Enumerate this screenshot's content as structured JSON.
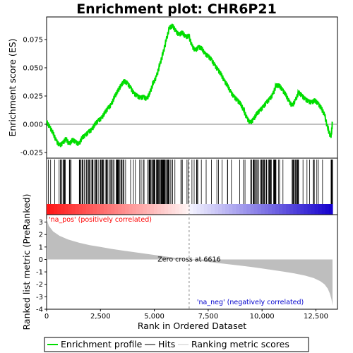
{
  "title": "Enrichment plot: CHR6P21",
  "colors": {
    "enrichment_line": "#00dd00",
    "hits": "#000000",
    "metric_fill": "#bebebe",
    "pos_color": "#ff0000",
    "neg_color": "#0000cc",
    "zero_line": "#808080",
    "legend_metric_line": "#c8c8c8"
  },
  "chart_data": {
    "type": "line",
    "title": "Enrichment plot: CHR6P21",
    "xlabel": "Rank in Ordered Dataset",
    "top_ylabel": "Enrichment score (ES)",
    "bottom_ylabel": "Ranked list metric (PreRanked)",
    "xlim": [
      0,
      13500
    ],
    "x_ticks": [
      0,
      2500,
      5000,
      7500,
      10000,
      12500
    ],
    "x_tick_labels": [
      "0",
      "2,500",
      "5,000",
      "7,500",
      "10,000",
      "12,500"
    ],
    "es_ylim": [
      -0.03,
      0.095
    ],
    "es_ticks": [
      -0.025,
      0,
      0.025,
      0.05,
      0.075
    ],
    "es_tick_labels": [
      "-0.025",
      "0.000",
      "0.025",
      "0.050",
      "0.075"
    ],
    "metric_ylim": [
      -4,
      3.6
    ],
    "metric_ticks": [
      -4,
      -3,
      -2,
      -1,
      0,
      1,
      2,
      3
    ],
    "metric_tick_labels": [
      "-4",
      "-3",
      "-2",
      "-1",
      "0",
      "1",
      "2",
      "3"
    ],
    "dataset_size": 13270,
    "zero_cross": 6616,
    "series": [
      {
        "name": "Enrichment profile",
        "x": [
          0,
          150,
          300,
          450,
          600,
          750,
          900,
          1050,
          1200,
          1350,
          1500,
          1650,
          1800,
          1950,
          2100,
          2250,
          2400,
          2550,
          2700,
          2850,
          3000,
          3150,
          3300,
          3450,
          3600,
          3750,
          3900,
          4050,
          4200,
          4350,
          4500,
          4650,
          4800,
          4950,
          5100,
          5250,
          5400,
          5550,
          5700,
          5850,
          6000,
          6150,
          6300,
          6450,
          6600,
          6750,
          6900,
          7050,
          7200,
          7350,
          7500,
          7650,
          7800,
          7950,
          8100,
          8250,
          8400,
          8550,
          8700,
          8850,
          9000,
          9150,
          9300,
          9450,
          9600,
          9750,
          9900,
          10050,
          10200,
          10350,
          10500,
          10650,
          10800,
          10950,
          11100,
          11250,
          11400,
          11550,
          11700,
          11850,
          12000,
          12150,
          12300,
          12450,
          12600,
          12750,
          12900,
          13050,
          13200,
          13270
        ],
        "y": [
          0.002,
          -0.003,
          -0.008,
          -0.015,
          -0.019,
          -0.017,
          -0.013,
          -0.018,
          -0.014,
          -0.016,
          -0.018,
          -0.012,
          -0.01,
          -0.007,
          -0.005,
          0.0,
          0.003,
          0.005,
          0.01,
          0.014,
          0.017,
          0.024,
          0.029,
          0.034,
          0.038,
          0.036,
          0.032,
          0.027,
          0.025,
          0.023,
          0.024,
          0.022,
          0.028,
          0.036,
          0.042,
          0.052,
          0.062,
          0.074,
          0.085,
          0.087,
          0.082,
          0.079,
          0.081,
          0.077,
          0.078,
          0.069,
          0.065,
          0.068,
          0.067,
          0.062,
          0.06,
          0.057,
          0.052,
          0.048,
          0.044,
          0.038,
          0.034,
          0.028,
          0.024,
          0.021,
          0.018,
          0.012,
          0.005,
          0.001,
          0.004,
          0.009,
          0.012,
          0.015,
          0.019,
          0.022,
          0.026,
          0.034,
          0.034,
          0.03,
          0.026,
          0.02,
          0.016,
          0.021,
          0.028,
          0.025,
          0.022,
          0.02,
          0.019,
          0.021,
          0.018,
          0.014,
          0.008,
          -0.004,
          -0.012,
          0.002
        ]
      },
      {
        "name": "Ranking metric scores",
        "x": [
          0,
          100,
          300,
          600,
          1000,
          1500,
          2000,
          2500,
          3000,
          3500,
          4000,
          4500,
          5000,
          5500,
          6000,
          6616,
          7000,
          7500,
          8000,
          8500,
          9000,
          9500,
          10000,
          10500,
          11000,
          11500,
          12000,
          12400,
          12700,
          12900,
          13050,
          13150,
          13220,
          13270
        ],
        "y": [
          3.3,
          2.7,
          2.25,
          1.9,
          1.6,
          1.35,
          1.15,
          1.0,
          0.85,
          0.72,
          0.6,
          0.48,
          0.36,
          0.24,
          0.12,
          0.0,
          -0.1,
          -0.2,
          -0.3,
          -0.4,
          -0.5,
          -0.6,
          -0.72,
          -0.85,
          -0.98,
          -1.12,
          -1.3,
          -1.5,
          -1.75,
          -2.0,
          -2.35,
          -2.75,
          -3.2,
          -3.7
        ]
      }
    ],
    "annotations": {
      "pos_label": "'na_pos' (positively correlated)",
      "neg_label": "'na_neg' (negatively correlated)",
      "zero_cross_label": "Zero cross at 6616"
    }
  },
  "legend": {
    "items": [
      {
        "label": "Enrichment profile"
      },
      {
        "label": "Hits"
      },
      {
        "label": "Ranking metric scores"
      }
    ]
  }
}
